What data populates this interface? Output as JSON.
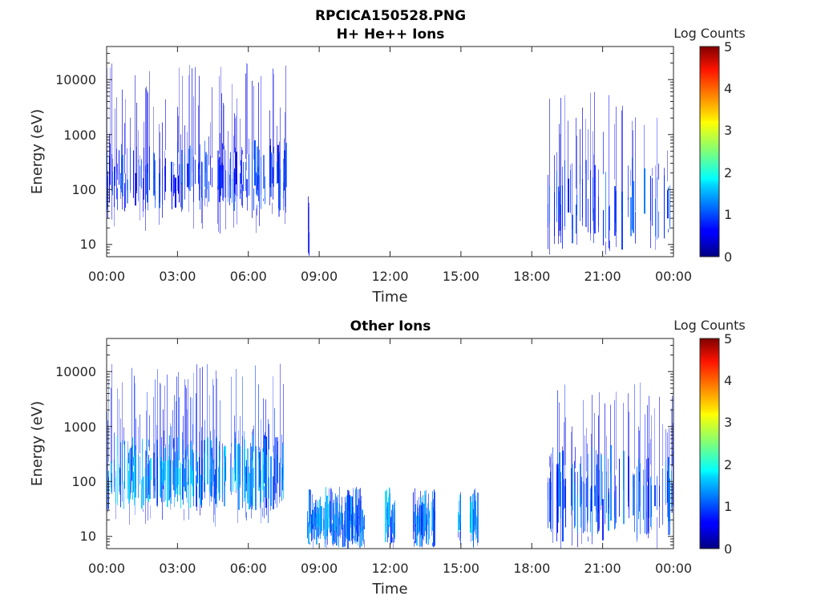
{
  "figure": {
    "title": "RPCICA150528.PNG"
  },
  "chart_data": [
    {
      "type": "heatmap",
      "title": "H+ He++ Ions",
      "xlabel": "Time",
      "ylabel": "Energy (eV)",
      "xticks": [
        "00:00",
        "03:00",
        "06:00",
        "09:00",
        "12:00",
        "15:00",
        "18:00",
        "21:00",
        "00:00"
      ],
      "xlim_hours": [
        0,
        24
      ],
      "yscale": "log",
      "yticks": [
        "10",
        "100",
        "1000",
        "10000"
      ],
      "ylim": [
        6,
        40000
      ],
      "colorbar": {
        "label": "Log Counts",
        "ticks": [
          "0",
          "1",
          "2",
          "3",
          "4",
          "5"
        ],
        "range": [
          0,
          5
        ],
        "colormap": "jet"
      },
      "activity": [
        {
          "start": 0.0,
          "end": 7.6,
          "emin": 15,
          "emax": 20000,
          "core_emin": 40,
          "core_emax": 800,
          "level": 0.8,
          "density": 0.55
        },
        {
          "start": 8.55,
          "end": 8.62,
          "emin": 6,
          "emax": 80,
          "core_emin": 6,
          "core_emax": 80,
          "level": 0.6,
          "density": 0.5
        },
        {
          "start": 18.7,
          "end": 23.9,
          "emin": 6,
          "emax": 8000,
          "core_emin": 8,
          "core_emax": 400,
          "level": 0.9,
          "density": 0.35
        }
      ]
    },
    {
      "type": "heatmap",
      "title": "Other Ions",
      "xlabel": "Time",
      "ylabel": "Energy (eV)",
      "xticks": [
        "00:00",
        "03:00",
        "06:00",
        "09:00",
        "12:00",
        "15:00",
        "18:00",
        "21:00",
        "00:00"
      ],
      "xlim_hours": [
        0,
        24
      ],
      "yscale": "log",
      "yticks": [
        "10",
        "100",
        "1000",
        "10000"
      ],
      "ylim": [
        6,
        40000
      ],
      "colorbar": {
        "label": "Log Counts",
        "ticks": [
          "0",
          "1",
          "2",
          "3",
          "4",
          "5"
        ],
        "range": [
          0,
          5
        ],
        "colormap": "jet"
      },
      "activity": [
        {
          "start": 0.0,
          "end": 7.6,
          "emin": 15,
          "emax": 15000,
          "core_emin": 30,
          "core_emax": 700,
          "level": 1.3,
          "density": 0.7
        },
        {
          "start": 8.5,
          "end": 10.9,
          "emin": 6,
          "emax": 80,
          "core_emin": 6,
          "core_emax": 80,
          "level": 1.2,
          "density": 0.95
        },
        {
          "start": 11.8,
          "end": 12.2,
          "emin": 6,
          "emax": 80,
          "core_emin": 6,
          "core_emax": 80,
          "level": 1.3,
          "density": 0.95
        },
        {
          "start": 13.0,
          "end": 13.9,
          "emin": 6,
          "emax": 80,
          "core_emin": 6,
          "core_emax": 80,
          "level": 1.2,
          "density": 0.95
        },
        {
          "start": 14.9,
          "end": 15.0,
          "emin": 6,
          "emax": 80,
          "core_emin": 6,
          "core_emax": 80,
          "level": 1.3,
          "density": 0.95
        },
        {
          "start": 15.4,
          "end": 15.7,
          "emin": 6,
          "emax": 80,
          "core_emin": 6,
          "core_emax": 80,
          "level": 1.3,
          "density": 0.95
        },
        {
          "start": 18.7,
          "end": 24.0,
          "emin": 6,
          "emax": 7000,
          "core_emin": 8,
          "core_emax": 500,
          "level": 1.0,
          "density": 0.45
        }
      ]
    }
  ]
}
